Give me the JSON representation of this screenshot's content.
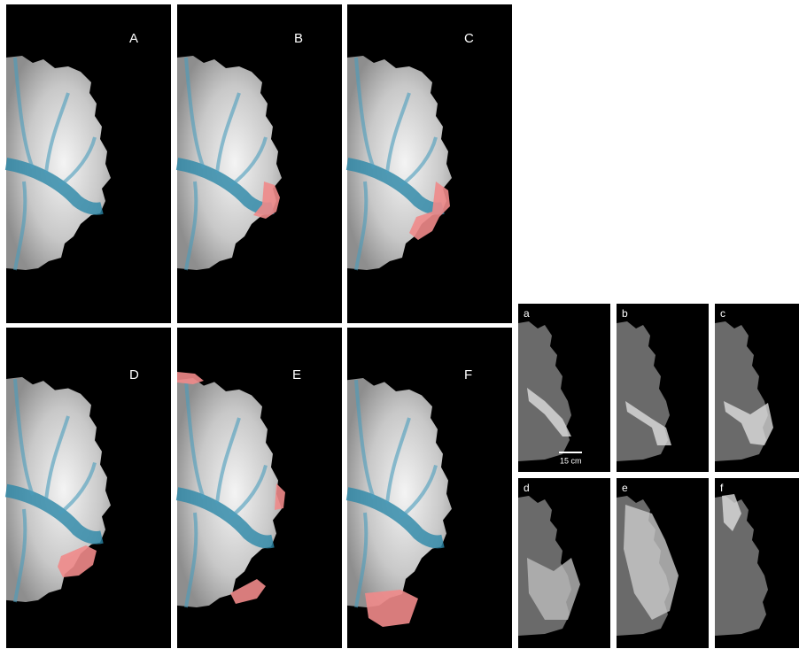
{
  "large_panels": {
    "labels": [
      "A",
      "B",
      "C",
      "D",
      "E",
      "F"
    ]
  },
  "small_panels": {
    "labels": [
      "a",
      "b",
      "c",
      "d",
      "e",
      "f"
    ],
    "scale_bar": "15 cm"
  }
}
